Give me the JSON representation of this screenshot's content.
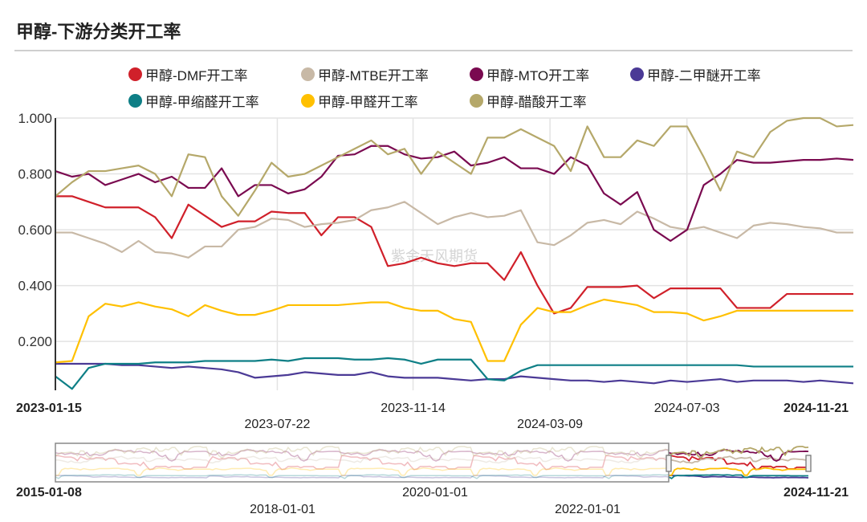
{
  "header": {
    "title": "甲醇-下游分类开工率"
  },
  "watermark": "紫金天风期货",
  "chart_data": {
    "type": "line",
    "title": "甲醇-下游分类开工率",
    "xlabel": "",
    "ylabel": "",
    "x_start": "2023-01-15",
    "x_end": "2024-11-21",
    "x_spacing": "evenly spaced (approx. biweekly samples)",
    "ylim": [
      0.025,
      1.0
    ],
    "y_ticks": [
      0.2,
      0.4,
      0.6,
      0.8,
      1.0
    ],
    "y_tick_labels": [
      "0.200",
      "0.400",
      "0.600",
      "0.800",
      "1.000"
    ],
    "x_ticks": [
      {
        "date": "2023-01-15",
        "label": "2023-01-15",
        "bold": true,
        "row": 0
      },
      {
        "date": "2023-07-22",
        "label": "2023-07-22",
        "bold": false,
        "row": 1
      },
      {
        "date": "2023-11-14",
        "label": "2023-11-14",
        "bold": false,
        "row": 0
      },
      {
        "date": "2024-03-09",
        "label": "2024-03-09",
        "bold": false,
        "row": 1
      },
      {
        "date": "2024-07-03",
        "label": "2024-07-03",
        "bold": false,
        "row": 0
      },
      {
        "date": "2024-11-21",
        "label": "2024-11-21",
        "bold": true,
        "row": 0
      }
    ],
    "grid": true,
    "legend_placement": "top",
    "series": [
      {
        "name": "甲醇-DMF开工率",
        "color": "#d0202a",
        "values": [
          0.72,
          0.72,
          0.7,
          0.68,
          0.68,
          0.68,
          0.645,
          0.57,
          0.69,
          0.65,
          0.61,
          0.63,
          0.63,
          0.665,
          0.66,
          0.66,
          0.58,
          0.645,
          0.645,
          0.61,
          0.47,
          0.48,
          0.5,
          0.48,
          0.47,
          0.48,
          0.48,
          0.42,
          0.52,
          0.4,
          0.3,
          0.32,
          0.395,
          0.395,
          0.395,
          0.4,
          0.355,
          0.39,
          0.39,
          0.39,
          0.39,
          0.32,
          0.32,
          0.32,
          0.37,
          0.37,
          0.37,
          0.37,
          0.37
        ]
      },
      {
        "name": "甲醇-MTBE开工率",
        "color": "#c8b9a6",
        "values": [
          0.59,
          0.59,
          0.57,
          0.55,
          0.52,
          0.56,
          0.52,
          0.515,
          0.5,
          0.54,
          0.54,
          0.6,
          0.61,
          0.64,
          0.635,
          0.61,
          0.62,
          0.625,
          0.635,
          0.67,
          0.68,
          0.7,
          0.66,
          0.62,
          0.645,
          0.66,
          0.645,
          0.65,
          0.67,
          0.555,
          0.545,
          0.58,
          0.625,
          0.635,
          0.62,
          0.665,
          0.64,
          0.61,
          0.6,
          0.61,
          0.59,
          0.57,
          0.615,
          0.625,
          0.62,
          0.61,
          0.605,
          0.59,
          0.59
        ]
      },
      {
        "name": "甲醇-MTO开工率",
        "color": "#7a0a50",
        "values": [
          0.81,
          0.79,
          0.8,
          0.76,
          0.78,
          0.8,
          0.77,
          0.79,
          0.75,
          0.75,
          0.82,
          0.72,
          0.76,
          0.76,
          0.73,
          0.745,
          0.79,
          0.865,
          0.87,
          0.9,
          0.9,
          0.87,
          0.855,
          0.86,
          0.88,
          0.83,
          0.84,
          0.86,
          0.82,
          0.82,
          0.8,
          0.86,
          0.83,
          0.73,
          0.69,
          0.735,
          0.6,
          0.56,
          0.6,
          0.76,
          0.8,
          0.85,
          0.84,
          0.84,
          0.845,
          0.85,
          0.85,
          0.855,
          0.85
        ]
      },
      {
        "name": "甲醇-二甲醚开工率",
        "color": "#4b3a96",
        "values": [
          0.12,
          0.12,
          0.12,
          0.12,
          0.115,
          0.115,
          0.11,
          0.105,
          0.11,
          0.105,
          0.1,
          0.09,
          0.07,
          0.075,
          0.08,
          0.09,
          0.085,
          0.08,
          0.08,
          0.09,
          0.075,
          0.07,
          0.07,
          0.07,
          0.065,
          0.06,
          0.065,
          0.065,
          0.075,
          0.07,
          0.065,
          0.06,
          0.06,
          0.055,
          0.06,
          0.055,
          0.05,
          0.06,
          0.055,
          0.06,
          0.065,
          0.055,
          0.06,
          0.06,
          0.06,
          0.055,
          0.06,
          0.055,
          0.05
        ]
      },
      {
        "name": "甲醇-甲缩醛开工率",
        "color": "#0e7f86",
        "values": [
          0.075,
          0.03,
          0.105,
          0.12,
          0.12,
          0.12,
          0.125,
          0.125,
          0.125,
          0.13,
          0.13,
          0.13,
          0.13,
          0.135,
          0.13,
          0.14,
          0.14,
          0.14,
          0.135,
          0.135,
          0.14,
          0.135,
          0.12,
          0.135,
          0.135,
          0.135,
          0.065,
          0.06,
          0.095,
          0.115,
          0.115,
          0.115,
          0.115,
          0.115,
          0.115,
          0.115,
          0.115,
          0.115,
          0.115,
          0.115,
          0.115,
          0.115,
          0.11,
          0.11,
          0.11,
          0.11,
          0.11,
          0.11,
          0.11
        ]
      },
      {
        "name": "甲醇-甲醛开工率",
        "color": "#ffc000",
        "values": [
          0.125,
          0.13,
          0.29,
          0.335,
          0.325,
          0.34,
          0.325,
          0.315,
          0.29,
          0.33,
          0.31,
          0.295,
          0.295,
          0.31,
          0.33,
          0.33,
          0.33,
          0.33,
          0.335,
          0.34,
          0.34,
          0.32,
          0.31,
          0.31,
          0.28,
          0.27,
          0.13,
          0.13,
          0.26,
          0.32,
          0.305,
          0.305,
          0.33,
          0.35,
          0.34,
          0.33,
          0.305,
          0.305,
          0.3,
          0.275,
          0.29,
          0.31,
          0.31,
          0.31,
          0.31,
          0.31,
          0.31,
          0.31,
          0.31
        ]
      },
      {
        "name": "甲醇-醋酸开工率",
        "color": "#b5a86a",
        "values": [
          0.72,
          0.77,
          0.81,
          0.81,
          0.82,
          0.83,
          0.8,
          0.72,
          0.87,
          0.86,
          0.72,
          0.65,
          0.74,
          0.84,
          0.79,
          0.8,
          0.83,
          0.86,
          0.89,
          0.92,
          0.87,
          0.89,
          0.8,
          0.88,
          0.84,
          0.8,
          0.93,
          0.93,
          0.96,
          0.93,
          0.9,
          0.81,
          0.97,
          0.86,
          0.86,
          0.92,
          0.9,
          0.97,
          0.97,
          0.86,
          0.74,
          0.88,
          0.86,
          0.95,
          0.99,
          1.0,
          1.0,
          0.97,
          0.975
        ]
      }
    ],
    "navigator": {
      "x_start": "2015-01-08",
      "x_end": "2024-11-21",
      "selected_start": "2023-01-15",
      "selected_end": "2024-11-21",
      "ticks": [
        {
          "label": "2015-01-08",
          "bold": true,
          "row": 0
        },
        {
          "label": "2018-01-01",
          "bold": false,
          "row": 1
        },
        {
          "label": "2020-01-01",
          "bold": false,
          "row": 0
        },
        {
          "label": "2022-01-01",
          "bold": false,
          "row": 1
        },
        {
          "label": "2024-11-21",
          "bold": true,
          "row": 0
        }
      ]
    }
  }
}
